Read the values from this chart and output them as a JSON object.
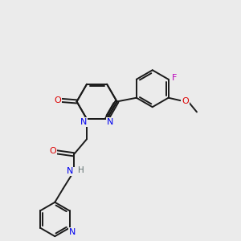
{
  "background_color": "#ebebeb",
  "bond_color": "#1a1a1a",
  "N_color": "#0000ee",
  "O_color": "#dd0000",
  "F_color": "#bb00bb",
  "H_color": "#607070",
  "figsize": [
    3.0,
    3.0
  ],
  "dpi": 100,
  "xlim": [
    0,
    10
  ],
  "ylim": [
    0,
    10
  ]
}
